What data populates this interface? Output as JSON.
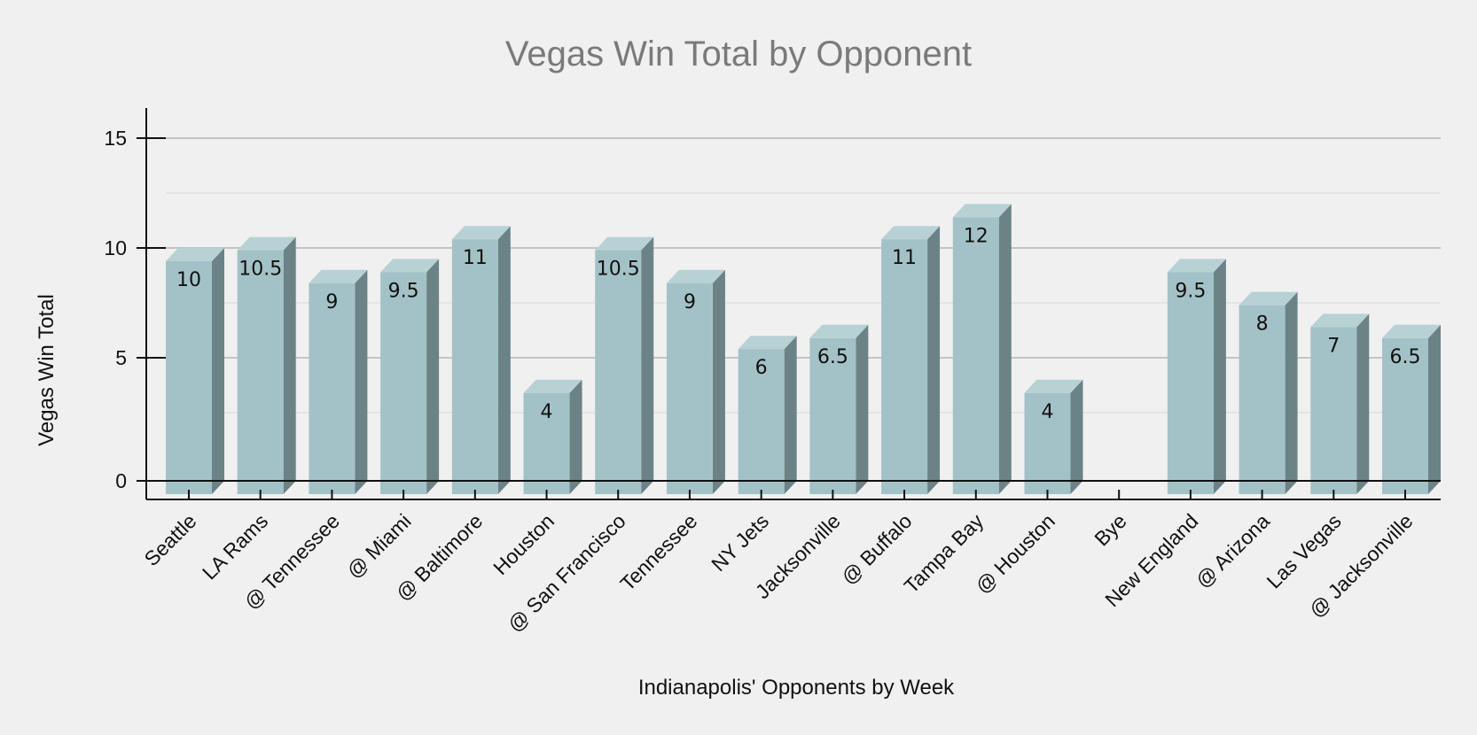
{
  "chart_data": {
    "type": "bar",
    "title": "Vegas Win Total by Opponent",
    "xlabel": "Indianapolis' Opponents by Week",
    "ylabel": "Vegas Win Total",
    "ylim": [
      0,
      17
    ],
    "yticks": [
      0,
      5,
      10,
      15
    ],
    "grid": true,
    "categories": [
      "Seattle",
      "LA Rams",
      "@ Tennessee",
      "@ Miami",
      "@ Baltimore",
      "Houston",
      "@ San Francisco",
      "Tennessee",
      "NY Jets",
      "Jacksonville",
      "@ Buffalo",
      "Tampa Bay",
      "@ Houston",
      "Bye",
      "New England",
      "@ Arizona",
      "Las Vegas",
      "@ Jacksonville"
    ],
    "values": [
      10,
      10.5,
      9,
      9.5,
      11,
      4,
      10.5,
      9,
      6,
      6.5,
      11,
      12,
      4,
      null,
      9.5,
      8,
      7,
      6.5
    ],
    "data_labels": [
      "10",
      "10.5",
      "9",
      "9.5",
      "11",
      "4",
      "10.5",
      "9",
      "6",
      "6.5",
      "11",
      "12",
      "4",
      "",
      "9.5",
      "8",
      "7",
      "6.5"
    ]
  },
  "colors": {
    "bar_front": "#a3c2c7",
    "bar_top": "#b7d1d5",
    "bar_side": "#6b8386",
    "major_grid": "#b5b5b5",
    "minor_grid": "#dcdcdc",
    "axis": "#111111"
  }
}
